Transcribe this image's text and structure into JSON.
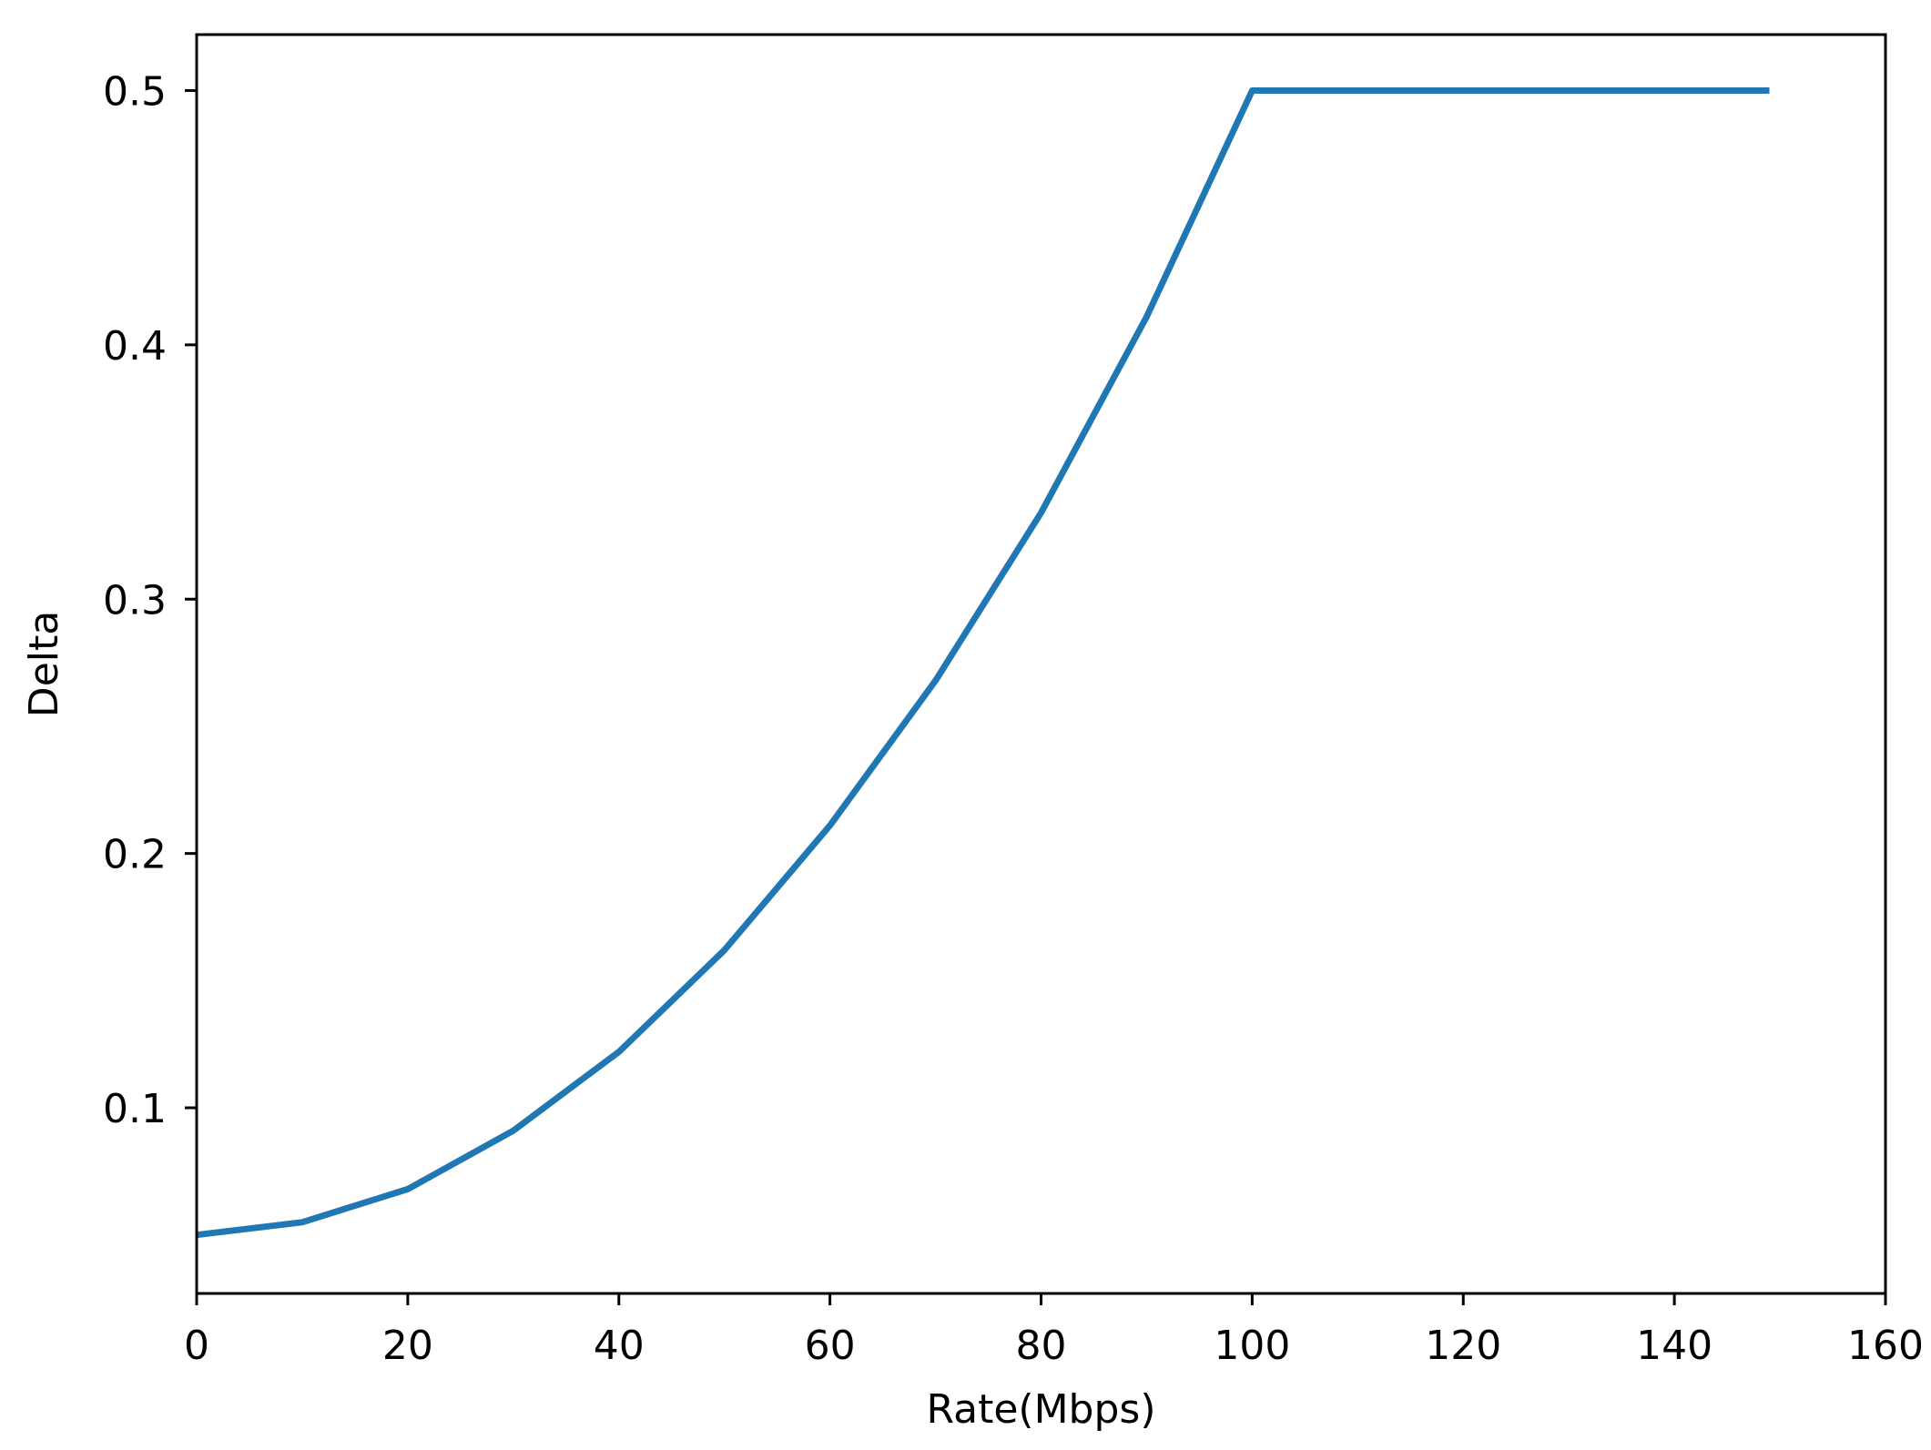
{
  "chart_data": {
    "type": "line",
    "title": "",
    "xlabel": "Rate(Mbps)",
    "ylabel": "Delta",
    "xlim": [
      0,
      160
    ],
    "ylim": [
      0.027,
      0.522
    ],
    "xticks": [
      0,
      20,
      40,
      60,
      80,
      100,
      120,
      140,
      160
    ],
    "xtick_labels": [
      "0",
      "20",
      "40",
      "60",
      "80",
      "100",
      "120",
      "140",
      "160"
    ],
    "yticks": [
      0.1,
      0.2,
      0.3,
      0.4,
      0.5
    ],
    "ytick_labels": [
      "0.1",
      "0.2",
      "0.3",
      "0.4",
      "0.5"
    ],
    "grid": false,
    "legend": "none",
    "colors": {
      "series": "#1f77b4",
      "axes": "#000000"
    },
    "series": [
      {
        "x": [
          0,
          10,
          20,
          30,
          40,
          50,
          60,
          70,
          80,
          90,
          100,
          110,
          120,
          130,
          140,
          149
        ],
        "y": [
          0.05,
          0.055,
          0.068,
          0.091,
          0.122,
          0.162,
          0.211,
          0.268,
          0.334,
          0.411,
          0.5,
          0.5,
          0.5,
          0.5,
          0.5,
          0.5
        ]
      }
    ]
  }
}
